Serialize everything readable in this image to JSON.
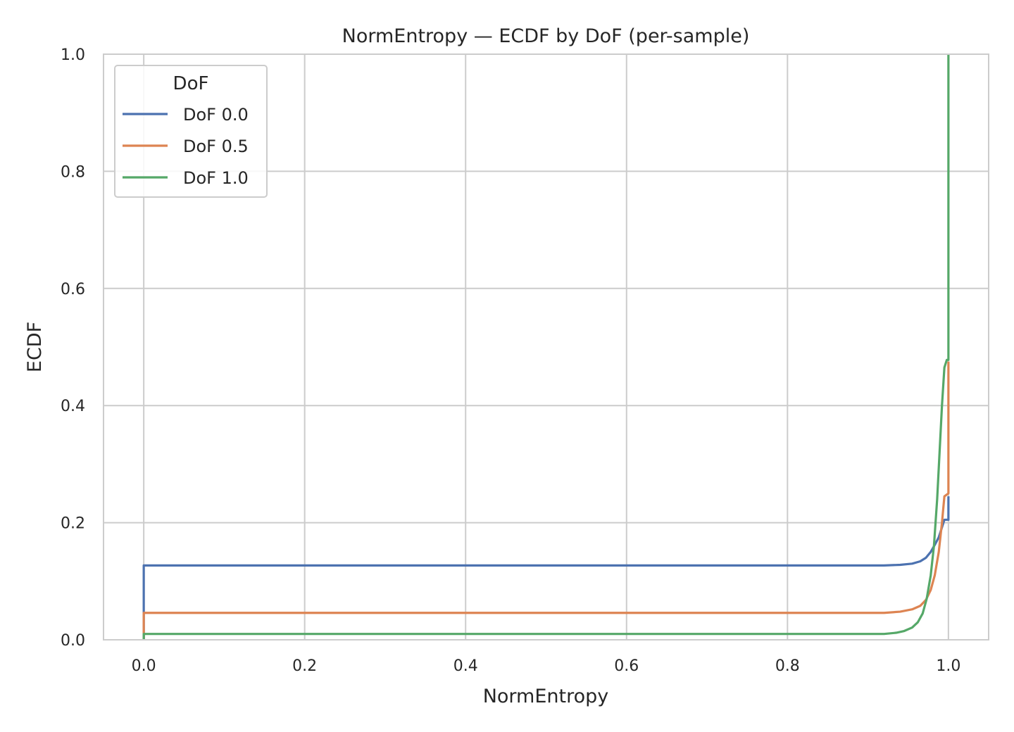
{
  "chart_data": {
    "type": "line",
    "title": "NormEntropy — ECDF by DoF (per-sample)",
    "xlabel": "NormEntropy",
    "ylabel": "ECDF",
    "xlim": [
      -0.05,
      1.05
    ],
    "ylim": [
      0.0,
      1.0
    ],
    "xticks": [
      0.0,
      0.2,
      0.4,
      0.6,
      0.8,
      1.0
    ],
    "xtick_labels": [
      "0.0",
      "0.2",
      "0.4",
      "0.6",
      "0.8",
      "1.0"
    ],
    "yticks": [
      0.0,
      0.2,
      0.4,
      0.6,
      0.8,
      1.0
    ],
    "ytick_labels": [
      "0.0",
      "0.2",
      "0.4",
      "0.6",
      "0.8",
      "1.0"
    ],
    "grid": true,
    "legend": {
      "title": "DoF",
      "position": "top-left"
    },
    "series": [
      {
        "name": "DoF 0.0",
        "color": "#4c72b0",
        "points": [
          [
            0.0,
            0.0
          ],
          [
            0.0,
            0.127
          ],
          [
            0.92,
            0.127
          ],
          [
            0.94,
            0.128
          ],
          [
            0.955,
            0.13
          ],
          [
            0.965,
            0.134
          ],
          [
            0.972,
            0.14
          ],
          [
            0.978,
            0.15
          ],
          [
            0.983,
            0.162
          ],
          [
            0.988,
            0.175
          ],
          [
            0.992,
            0.192
          ],
          [
            0.995,
            0.205
          ],
          [
            1.0,
            0.205
          ],
          [
            1.0,
            0.245
          ]
        ]
      },
      {
        "name": "DoF 0.5",
        "color": "#dd8452",
        "points": [
          [
            0.0,
            0.0
          ],
          [
            0.0,
            0.046
          ],
          [
            0.92,
            0.046
          ],
          [
            0.94,
            0.048
          ],
          [
            0.955,
            0.052
          ],
          [
            0.965,
            0.058
          ],
          [
            0.972,
            0.068
          ],
          [
            0.978,
            0.085
          ],
          [
            0.983,
            0.11
          ],
          [
            0.988,
            0.15
          ],
          [
            0.992,
            0.2
          ],
          [
            0.995,
            0.245
          ],
          [
            0.998,
            0.248
          ],
          [
            1.0,
            0.25
          ],
          [
            1.0,
            0.475
          ]
        ]
      },
      {
        "name": "DoF 1.0",
        "color": "#55a868",
        "points": [
          [
            0.0,
            0.0
          ],
          [
            0.0,
            0.01
          ],
          [
            0.92,
            0.01
          ],
          [
            0.935,
            0.012
          ],
          [
            0.945,
            0.015
          ],
          [
            0.955,
            0.021
          ],
          [
            0.962,
            0.03
          ],
          [
            0.968,
            0.045
          ],
          [
            0.973,
            0.07
          ],
          [
            0.978,
            0.11
          ],
          [
            0.982,
            0.16
          ],
          [
            0.986,
            0.24
          ],
          [
            0.989,
            0.32
          ],
          [
            0.992,
            0.4
          ],
          [
            0.995,
            0.465
          ],
          [
            0.998,
            0.478
          ],
          [
            1.0,
            0.478
          ],
          [
            1.0,
            1.0
          ]
        ]
      }
    ]
  }
}
